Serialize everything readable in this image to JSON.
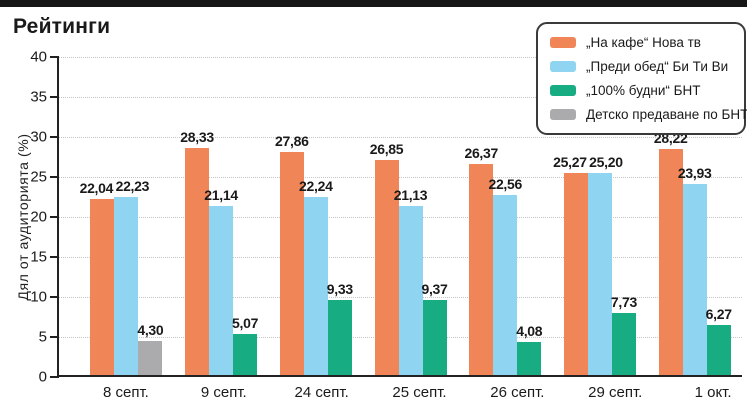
{
  "chart_data": {
    "type": "bar",
    "title": "Рейтинги",
    "ylabel": "Дял от аудиторията (%)",
    "ylim": [
      0,
      40
    ],
    "yticks": [
      0,
      5,
      10,
      15,
      20,
      25,
      30,
      35,
      40
    ],
    "grid": true,
    "legend_position": "top-right",
    "decimal_separator": ",",
    "categories": [
      "8 септ.",
      "9 септ.",
      "24 септ.",
      "25 септ.",
      "26 септ.",
      "29 септ.",
      "1 окт."
    ],
    "series": [
      {
        "name": "„На кафе“ Нова тв",
        "color": "#F08557",
        "values": [
          22.04,
          28.33,
          27.86,
          26.85,
          26.37,
          25.27,
          28.22
        ],
        "labels": [
          "22,04",
          "28,33",
          "27,86",
          "26,85",
          "26,37",
          "25,27",
          "28,22"
        ]
      },
      {
        "name": "„Преди обед“ Би Ти Ви",
        "color": "#8FD5F2",
        "values": [
          22.23,
          21.14,
          22.24,
          21.13,
          22.56,
          25.2,
          23.93
        ],
        "labels": [
          "22,23",
          "21,14",
          "22,24",
          "21,13",
          "22,56",
          "25,20",
          "23,93"
        ]
      },
      {
        "name": "„100% будни“ БНТ",
        "color": "#17AC81",
        "values": [
          null,
          5.07,
          9.33,
          9.37,
          4.08,
          7.73,
          6.27
        ],
        "labels": [
          null,
          "5,07",
          "9,33",
          "9,37",
          "4,08",
          "7,73",
          "6,27"
        ]
      },
      {
        "name": "Детско предаване по БНТ",
        "color": "#ABABAE",
        "values": [
          4.3,
          null,
          null,
          null,
          null,
          null,
          null
        ],
        "labels": [
          "4,30",
          null,
          null,
          null,
          null,
          null,
          null
        ]
      }
    ]
  }
}
